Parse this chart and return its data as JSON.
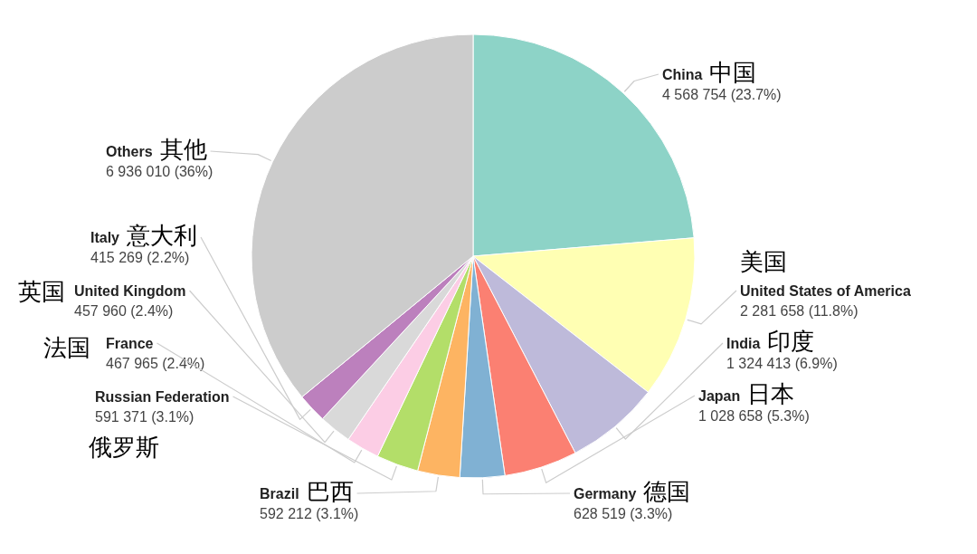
{
  "chart_data": {
    "type": "pie",
    "categories": [
      "China",
      "United States of America",
      "India",
      "Japan",
      "Germany",
      "Brazil",
      "Russian Federation",
      "France",
      "United Kingdom",
      "Italy",
      "Others"
    ],
    "values": [
      4568754,
      2281658,
      1324413,
      1028658,
      628519,
      592212,
      591371,
      467965,
      457960,
      415269,
      6936010
    ],
    "colors": [
      "#8dd3c7",
      "#ffffb3",
      "#bebada",
      "#fb8072",
      "#80b1d3",
      "#fdb462",
      "#b3de69",
      "#fccde5",
      "#d9d9d9",
      "#bc80bd",
      "#cccccc"
    ],
    "value_labels": [
      "4 568 754 (23.7%)",
      "2 281 658 (11.8%)",
      "1 324 413 (6.9%)",
      "1 028 658 (5.3%)",
      "628 519 (3.3%)",
      "592 212 (3.1%)",
      "591 371 (3.1%)",
      "467 965 (2.4%)",
      "457 960 (2.4%)",
      "415 269 (2.2%)",
      "6 936 010 (36%)"
    ],
    "annotations": [
      {
        "text": "中国",
        "x": "China"
      },
      {
        "text": "美国",
        "x": "United States of America"
      },
      {
        "text": "印度",
        "x": "India"
      },
      {
        "text": "日本",
        "x": "Japan"
      },
      {
        "text": "德国",
        "x": "Germany"
      },
      {
        "text": "巴西",
        "x": "Brazil"
      },
      {
        "text": "俄罗斯",
        "x": "Russian Federation"
      },
      {
        "text": "法国",
        "x": "France"
      },
      {
        "text": "英国",
        "x": "United Kingdom"
      },
      {
        "text": "意大利",
        "x": "Italy"
      },
      {
        "text": "其他",
        "x": "Others"
      }
    ]
  }
}
